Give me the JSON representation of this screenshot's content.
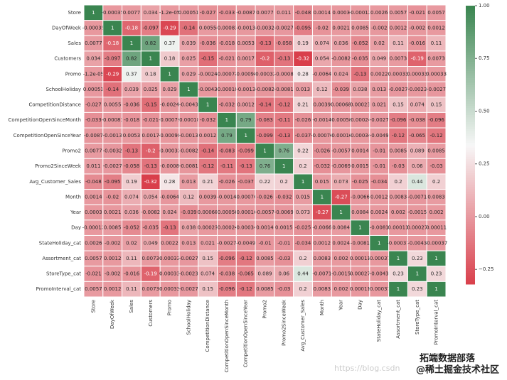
{
  "chart_data": {
    "type": "heatmap",
    "categories": [
      "Store",
      "DayOfWeek",
      "Sales",
      "Customers",
      "Promo",
      "SchoolHoliday",
      "CompetitionDistance",
      "CompetitionOpenSinceMonth",
      "CompetitionOpenSinceYear",
      "Promo2",
      "Promo2SinceWeek",
      "Avg_Customer_Sales",
      "Month",
      "Year",
      "Day",
      "StateHoliday_cat",
      "Assortment_cat",
      "StoreType_cat",
      "PromoInterval_cat"
    ],
    "values": [
      [
        1,
        -0.00035,
        0.0077,
        0.034,
        -1.2e-05,
        0.00051,
        -0.027,
        -0.033,
        -0.0087,
        0.0077,
        0.011,
        -0.048,
        0.0014,
        0.0003,
        -0.00012,
        0.0026,
        0.0057,
        -0.021,
        0.0057
      ],
      [
        -0.00035,
        1,
        -0.18,
        -0.097,
        -0.29,
        -0.14,
        0.0055,
        -0.00083,
        -0.0013,
        -0.0032,
        -0.0027,
        -0.095,
        -0.02,
        0.0021,
        0.0085,
        -0.002,
        0.0012,
        -0.002,
        0.0012
      ],
      [
        0.0077,
        -0.18,
        1,
        0.82,
        0.37,
        0.039,
        -0.036,
        -0.018,
        0.0053,
        -0.13,
        -0.058,
        0.19,
        0.074,
        0.036,
        -0.052,
        0.02,
        0.11,
        -0.016,
        0.11
      ],
      [
        0.034,
        -0.097,
        0.82,
        1,
        0.18,
        0.025,
        -0.15,
        -0.021,
        0.0017,
        -0.2,
        -0.13,
        -0.32,
        0.054,
        -0.0082,
        -0.035,
        0.049,
        0.0073,
        -0.19,
        0.0073
      ],
      [
        -1.2e-05,
        -0.29,
        0.37,
        0.18,
        1,
        0.029,
        -0.0024,
        -0.00071,
        -0.00098,
        -0.00032,
        -0.0008,
        0.28,
        -0.0064,
        0.024,
        -0.13,
        0.0022,
        0.00033,
        0.00033,
        0.00033
      ],
      [
        0.00051,
        -0.14,
        0.039,
        0.025,
        0.029,
        1,
        -0.0043,
        -0.00018,
        -0.0013,
        -0.0082,
        -0.0081,
        0.013,
        0.12,
        -0.039,
        0.038,
        0.013,
        -0.0027,
        -0.0023,
        -0.0027
      ],
      [
        -0.027,
        0.0055,
        -0.036,
        -0.15,
        -0.0024,
        -0.0043,
        1,
        -0.032,
        0.0012,
        -0.14,
        -0.12,
        0.21,
        0.0039,
        0.00068,
        0.00023,
        0.021,
        0.15,
        0.074,
        0.15
      ],
      [
        -0.033,
        -0.00083,
        -0.018,
        -0.021,
        -0.00071,
        -0.00018,
        -0.032,
        1,
        0.79,
        -0.083,
        -0.11,
        -0.026,
        -0.0014,
        -0.00058,
        -0.00024,
        -0.0027,
        -0.096,
        -0.038,
        -0.096
      ],
      [
        -0.0087,
        -0.0013,
        0.0053,
        0.0017,
        -0.00098,
        -0.0013,
        0.0012,
        0.79,
        1,
        -0.099,
        -0.13,
        -0.037,
        -0.00076,
        -0.00016,
        -0.00034,
        -0.0049,
        -0.12,
        -0.065,
        -0.12
      ],
      [
        0.0077,
        -0.0032,
        -0.13,
        -0.2,
        -0.00032,
        -0.0082,
        -0.14,
        -0.083,
        -0.099,
        1,
        0.76,
        0.22,
        -0.026,
        -0.0057,
        0.0014,
        -0.01,
        0.0085,
        0.089,
        0.0085
      ],
      [
        0.011,
        -0.0027,
        -0.058,
        -0.13,
        -0.0008,
        -0.0081,
        -0.12,
        -0.11,
        -0.13,
        0.76,
        1,
        0.2,
        -0.032,
        -0.0069,
        0.0015,
        -0.01,
        -0.03,
        0.06,
        -0.03
      ],
      [
        -0.048,
        -0.095,
        0.19,
        -0.32,
        0.28,
        0.013,
        0.21,
        -0.026,
        -0.037,
        0.22,
        0.2,
        1,
        0.015,
        0.073,
        -0.025,
        -0.034,
        0.2,
        0.44,
        0.2
      ],
      [
        0.0014,
        -0.02,
        0.074,
        0.054,
        -0.0064,
        0.12,
        0.0039,
        -0.0014,
        -0.00076,
        -0.026,
        -0.032,
        0.015,
        1,
        -0.27,
        -0.0066,
        0.0012,
        0.0083,
        -0.0071,
        0.0083
      ],
      [
        0.0003,
        0.0021,
        0.036,
        -0.0082,
        0.024,
        -0.039,
        0.00068,
        -0.00058,
        -0.00016,
        -0.0057,
        -0.0069,
        0.073,
        -0.27,
        1,
        0.0084,
        0.0024,
        0.002,
        -0.0015,
        0.002
      ],
      [
        -0.00012,
        0.0085,
        -0.052,
        -0.035,
        -0.13,
        0.038,
        0.00023,
        -0.00024,
        -0.00034,
        0.0014,
        0.0015,
        -0.025,
        -0.0066,
        0.0084,
        1,
        -0.0081,
        0.00011,
        0.00027,
        0.00011
      ],
      [
        0.0026,
        -0.002,
        0.02,
        0.049,
        0.0022,
        0.013,
        0.021,
        -0.0027,
        -0.0049,
        -0.01,
        -0.01,
        -0.034,
        0.0012,
        0.0024,
        -0.0081,
        1,
        -0.00037,
        -0.0043,
        -0.00037
      ],
      [
        0.0057,
        0.0012,
        0.11,
        0.0073,
        0.00033,
        -0.0027,
        0.15,
        -0.096,
        -0.12,
        0.0085,
        -0.03,
        0.2,
        0.0083,
        0.002,
        0.00011,
        -0.00037,
        1,
        0.23,
        1
      ],
      [
        -0.021,
        -0.002,
        -0.016,
        -0.19,
        0.00033,
        -0.0023,
        0.074,
        -0.038,
        -0.065,
        0.089,
        0.06,
        0.44,
        -0.0071,
        -0.0015,
        0.00027,
        -0.0043,
        0.23,
        1,
        0.23
      ],
      [
        0.0057,
        0.0012,
        0.11,
        0.0073,
        0.00033,
        -0.0027,
        0.15,
        -0.096,
        -0.12,
        0.0085,
        -0.03,
        0.2,
        0.0083,
        0.002,
        0.00011,
        -0.00037,
        1,
        0.23,
        1
      ]
    ],
    "colors": [
      "#d93f4b",
      "#f7f7f7",
      "#3a8550"
    ],
    "clim": [
      -0.32,
      1
    ],
    "cticks": [
      {
        "value": -0.25,
        "label": "−0.25"
      },
      {
        "value": 0,
        "label": "0.00"
      },
      {
        "value": 0.25,
        "label": "0.25"
      },
      {
        "value": 0.5,
        "label": "0.50"
      },
      {
        "value": 0.75,
        "label": "0.75"
      },
      {
        "value": 1,
        "label": "1.00"
      }
    ],
    "watermarks": [
      "拓端数据部落",
      "https://blog.csdn",
      "@稀土掘金技术社区"
    ]
  }
}
